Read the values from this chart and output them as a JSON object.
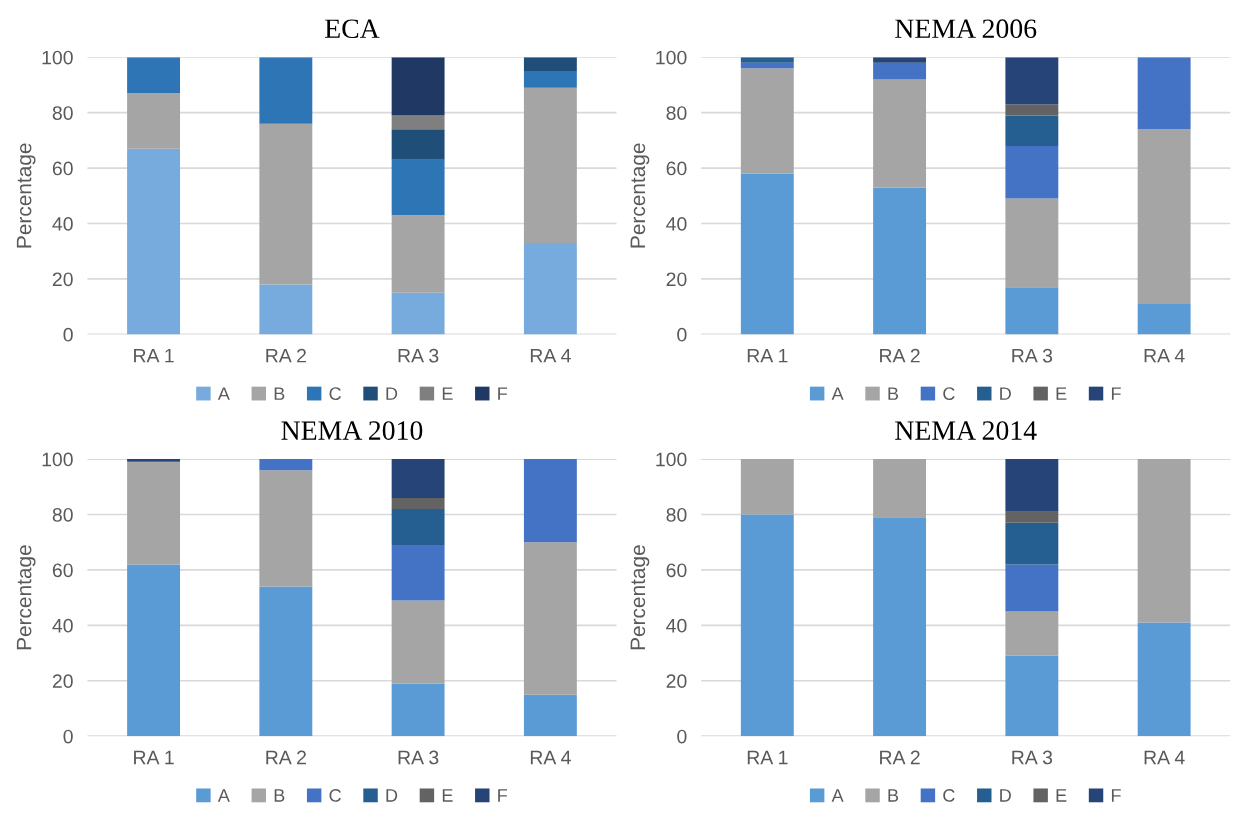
{
  "chart_data": [
    {
      "type": "bar",
      "title": "ECA",
      "ylabel": "Percentage",
      "stacked": true,
      "categories": [
        "RA 1",
        "RA 2",
        "RA 3",
        "RA 4"
      ],
      "ylim": [
        0,
        100
      ],
      "yticks": [
        0,
        20,
        40,
        60,
        80,
        100
      ],
      "grid": "y",
      "legend": "bottom",
      "series": [
        {
          "name": "A",
          "color": "#77aadd",
          "values": [
            67,
            18,
            15,
            33
          ]
        },
        {
          "name": "B",
          "color": "#a5a5a5",
          "values": [
            20,
            58,
            28,
            56
          ]
        },
        {
          "name": "C",
          "color": "#2e75b6",
          "values": [
            13,
            24,
            20,
            6
          ]
        },
        {
          "name": "D",
          "color": "#1f4e79",
          "values": [
            0,
            0,
            11,
            5
          ]
        },
        {
          "name": "E",
          "color": "#7f7f7f",
          "values": [
            0,
            0,
            5,
            0
          ]
        },
        {
          "name": "F",
          "color": "#203864",
          "values": [
            0,
            0,
            21,
            0
          ]
        }
      ]
    },
    {
      "type": "bar",
      "title": "NEMA 2006",
      "ylabel": "Percentage",
      "stacked": true,
      "categories": [
        "RA 1",
        "RA 2",
        "RA 3",
        "RA 4"
      ],
      "ylim": [
        0,
        100
      ],
      "yticks": [
        0,
        20,
        40,
        60,
        80,
        100
      ],
      "grid": "y",
      "legend": "bottom",
      "series": [
        {
          "name": "A",
          "color": "#5b9bd5",
          "values": [
            58,
            53,
            17,
            11
          ]
        },
        {
          "name": "B",
          "color": "#a5a5a5",
          "values": [
            38,
            39,
            32,
            63
          ]
        },
        {
          "name": "C",
          "color": "#4472c4",
          "values": [
            2,
            6,
            19,
            26
          ]
        },
        {
          "name": "D",
          "color": "#255e91",
          "values": [
            2,
            0,
            11,
            0
          ]
        },
        {
          "name": "E",
          "color": "#636363",
          "values": [
            0,
            0,
            4,
            0
          ]
        },
        {
          "name": "F",
          "color": "#264478",
          "values": [
            0,
            2,
            17,
            0
          ]
        }
      ]
    },
    {
      "type": "bar",
      "title": "NEMA 2010",
      "ylabel": "Percentage",
      "stacked": true,
      "categories": [
        "RA 1",
        "RA 2",
        "RA 3",
        "RA 4"
      ],
      "ylim": [
        0,
        100
      ],
      "yticks": [
        0,
        20,
        40,
        60,
        80,
        100
      ],
      "grid": "y",
      "legend": "bottom",
      "series": [
        {
          "name": "A",
          "color": "#5b9bd5",
          "values": [
            62,
            54,
            19,
            15
          ]
        },
        {
          "name": "B",
          "color": "#a5a5a5",
          "values": [
            37,
            42,
            30,
            55
          ]
        },
        {
          "name": "C",
          "color": "#4472c4",
          "values": [
            0,
            4,
            20,
            30
          ]
        },
        {
          "name": "D",
          "color": "#255e91",
          "values": [
            0,
            0,
            13,
            0
          ]
        },
        {
          "name": "E",
          "color": "#636363",
          "values": [
            0,
            0,
            4,
            0
          ]
        },
        {
          "name": "F",
          "color": "#264478",
          "values": [
            1,
            0,
            14,
            0
          ]
        }
      ]
    },
    {
      "type": "bar",
      "title": "NEMA 2014",
      "ylabel": "Percentage",
      "stacked": true,
      "categories": [
        "RA 1",
        "RA 2",
        "RA 3",
        "RA 4"
      ],
      "ylim": [
        0,
        100
      ],
      "yticks": [
        0,
        20,
        40,
        60,
        80,
        100
      ],
      "grid": "y",
      "legend": "bottom",
      "series": [
        {
          "name": "A",
          "color": "#5b9bd5",
          "values": [
            80,
            79,
            29,
            41
          ]
        },
        {
          "name": "B",
          "color": "#a5a5a5",
          "values": [
            20,
            21,
            16,
            59
          ]
        },
        {
          "name": "C",
          "color": "#4472c4",
          "values": [
            0,
            0,
            17,
            0
          ]
        },
        {
          "name": "D",
          "color": "#255e91",
          "values": [
            0,
            0,
            15,
            0
          ]
        },
        {
          "name": "E",
          "color": "#636363",
          "values": [
            0,
            0,
            4,
            0
          ]
        },
        {
          "name": "F",
          "color": "#264478",
          "values": [
            0,
            0,
            19,
            0
          ]
        }
      ]
    }
  ]
}
